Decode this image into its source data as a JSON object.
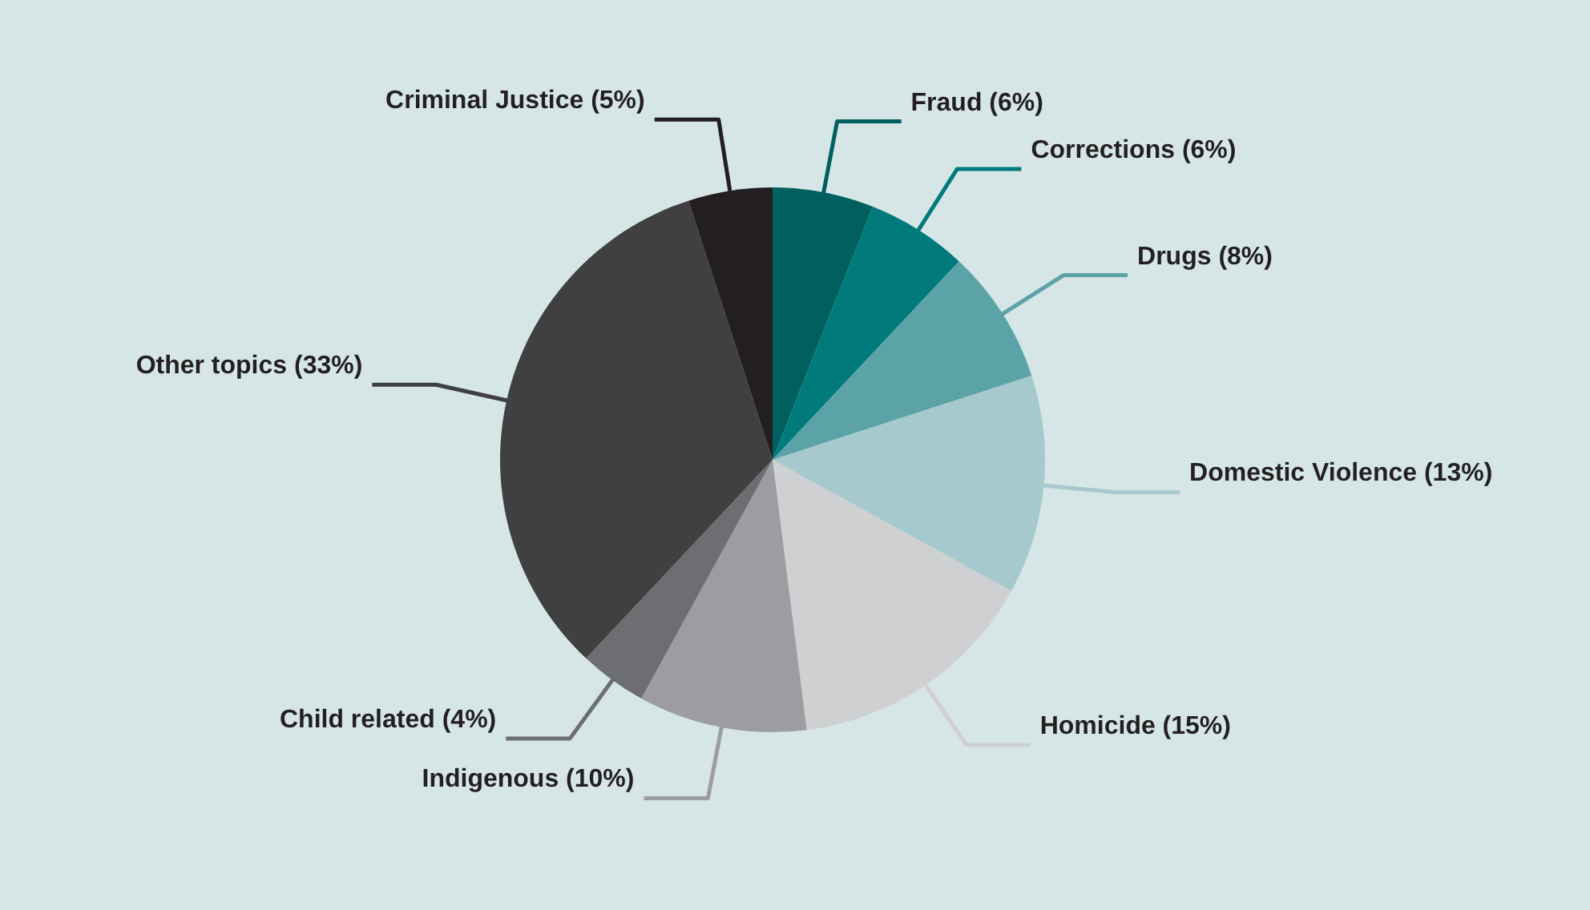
{
  "chart_data": {
    "type": "pie",
    "categories": [
      "Fraud",
      "Corrections",
      "Drugs",
      "Domestic Violence",
      "Homicide",
      "Indigenous",
      "Child related",
      "Other topics",
      "Criminal Justice"
    ],
    "values": [
      6,
      6,
      8,
      13,
      15,
      10,
      4,
      33,
      5
    ],
    "colors": [
      "#00605f",
      "#007a7a",
      "#5ca3a8",
      "#a5c9cc",
      "#cfd0d2",
      "#9c9da0",
      "#6d6e71",
      "#404040",
      "#231f20"
    ],
    "value_labels": [
      "(6%)",
      "(6%)",
      "(8%)",
      "(13%)",
      "(15%)",
      "(10%)",
      "(4%)",
      "(33%)",
      "(5%)"
    ]
  }
}
